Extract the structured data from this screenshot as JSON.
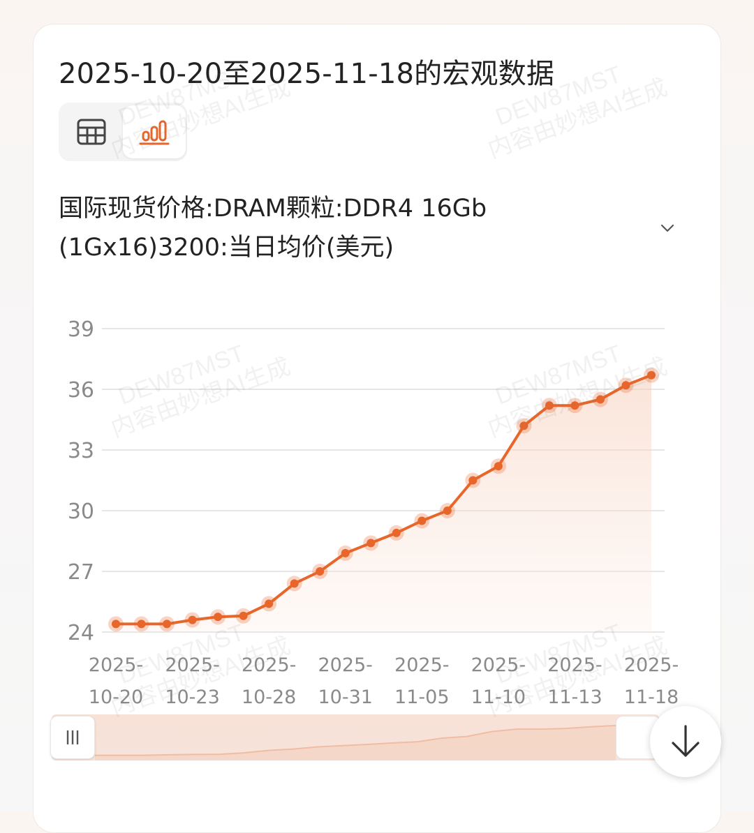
{
  "title": "2025-10-20至2025-11-18的宏观数据",
  "view_toggle": {
    "table_icon": "table-grid-icon",
    "chart_icon": "bar-chart-icon",
    "active": "chart"
  },
  "indicator": {
    "line1": "国际现货价格:DRAM颗粒:DDR4 16Gb",
    "line2": "(1Gx16)3200:当日均价(美元)",
    "dropdown_icon": "chevron-down-icon"
  },
  "watermark": {
    "code": "DEW87MST",
    "text": "内容由妙想AI生成"
  },
  "colors": {
    "accent": "#e8662a",
    "accent_light": "#f8d9c9",
    "grid": "#e6e6e6",
    "tick_text": "#8a8a8a"
  },
  "chart_data": {
    "type": "line",
    "x": [
      "2025-10-20",
      "2025-10-21",
      "2025-10-22",
      "2025-10-23",
      "2025-10-24",
      "2025-10-27",
      "2025-10-28",
      "2025-10-29",
      "2025-10-30",
      "2025-10-31",
      "2025-11-03",
      "2025-11-04",
      "2025-11-05",
      "2025-11-06",
      "2025-11-07",
      "2025-11-10",
      "2025-11-11",
      "2025-11-12",
      "2025-11-13",
      "2025-11-14",
      "2025-11-17",
      "2025-11-18"
    ],
    "series": [
      {
        "values": [
          24.4,
          24.4,
          24.4,
          24.6,
          24.75,
          24.8,
          25.4,
          26.4,
          27.0,
          27.9,
          28.4,
          28.9,
          29.5,
          30.0,
          31.5,
          32.2,
          34.2,
          35.2,
          35.2,
          35.5,
          36.2,
          36.7
        ]
      }
    ],
    "x_tick_labels": [
      {
        "top": "2025-",
        "bottom": "10-20"
      },
      {
        "top": "2025-",
        "bottom": "10-23"
      },
      {
        "top": "2025-",
        "bottom": "10-28"
      },
      {
        "top": "2025-",
        "bottom": "10-31"
      },
      {
        "top": "2025-",
        "bottom": "11-05"
      },
      {
        "top": "2025-",
        "bottom": "11-10"
      },
      {
        "top": "2025-",
        "bottom": "11-13"
      },
      {
        "top": "2025-",
        "bottom": "11-18"
      }
    ],
    "x_tick_indices": [
      0,
      3,
      6,
      9,
      12,
      15,
      18,
      21
    ],
    "y_ticks": [
      24,
      27,
      30,
      33,
      36,
      39
    ],
    "ylim": [
      24,
      39
    ],
    "grid": true,
    "area_fill": true,
    "legend": "none"
  }
}
